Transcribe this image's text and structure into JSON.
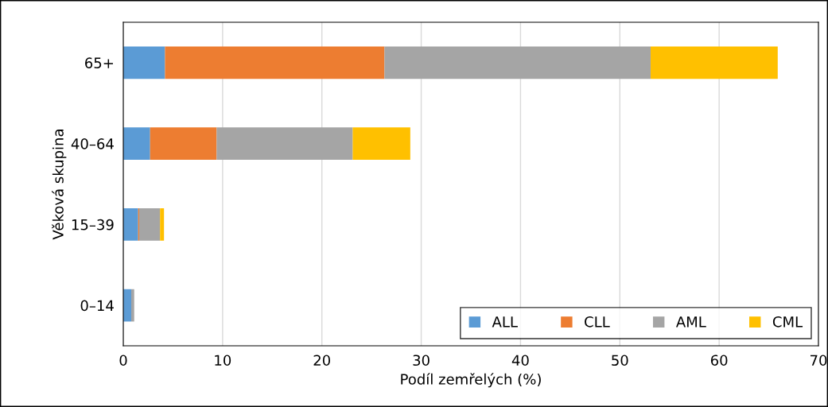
{
  "chart_data": {
    "type": "bar",
    "orientation": "horizontal",
    "stacked": true,
    "xlabel": "Podíl zemřelých (%)",
    "ylabel": "Věková skupina",
    "categories": [
      "65+",
      "40–64",
      "15–39",
      "0–14"
    ],
    "series": [
      {
        "name": "ALL",
        "color": "#5b9bd5",
        "values": [
          4.2,
          2.7,
          1.5,
          0.8
        ]
      },
      {
        "name": "CLL",
        "color": "#ed7d31",
        "values": [
          22.1,
          6.7,
          0.1,
          0
        ]
      },
      {
        "name": "AML",
        "color": "#a5a5a5",
        "values": [
          26.8,
          13.7,
          2.1,
          0.3
        ]
      },
      {
        "name": "CML",
        "color": "#ffc000",
        "values": [
          12.8,
          5.8,
          0.4,
          0
        ]
      }
    ],
    "xlim": [
      0,
      70
    ],
    "xticks": [
      0,
      10,
      20,
      30,
      40,
      50,
      60,
      70
    ],
    "grid": "x",
    "legend": "bottom right"
  }
}
